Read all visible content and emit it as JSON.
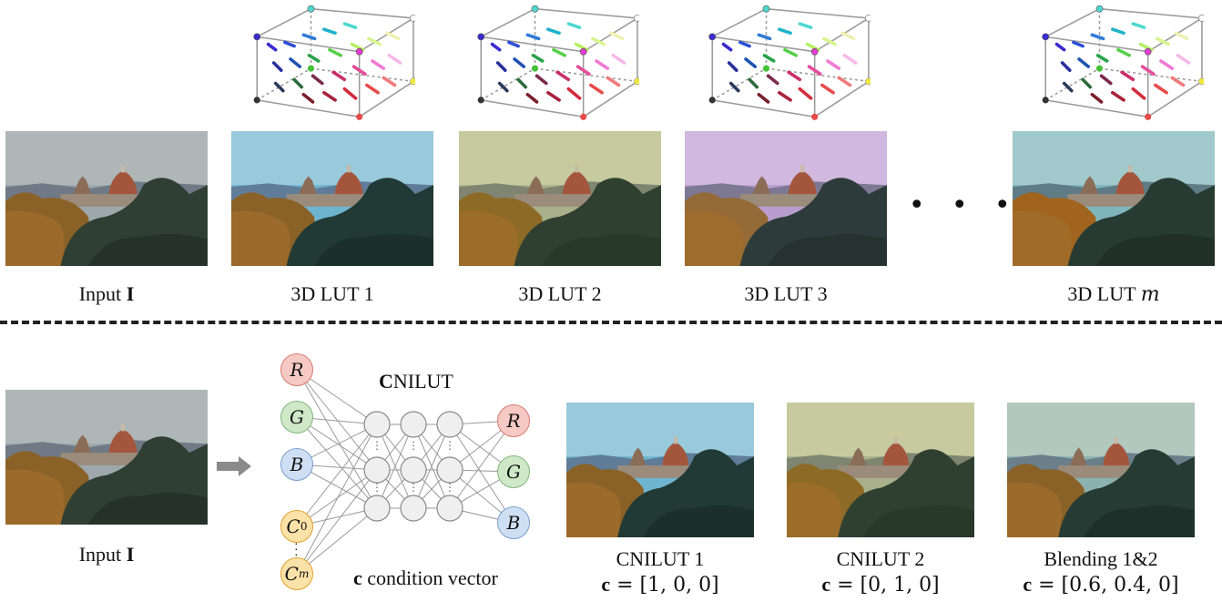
{
  "top_row": {
    "captions": {
      "input": "Input ",
      "input_bold": "I",
      "lut1": "3D LUT 1",
      "lut2": "3D LUT 2",
      "lut3": "3D LUT 3",
      "lutm": "3D LUT ",
      "lutm_italic": "m"
    },
    "ellipsis": ". . ."
  },
  "bottom_row": {
    "input_caption": "Input ",
    "input_caption_bold": "I",
    "network_title_bold": "C",
    "network_title_rest": "NILUT",
    "input_nodes": [
      "R",
      "G",
      "B"
    ],
    "condition_nodes": [
      "C0",
      "Cm"
    ],
    "output_nodes": [
      "R",
      "G",
      "B"
    ],
    "condition_label_bold": "c",
    "condition_label_rest": " condition vector",
    "results": [
      {
        "title": "CNILUT 1",
        "formula_bold": "c",
        "formula_rest": " = [1, 0, 0]"
      },
      {
        "title": "CNILUT 2",
        "formula_bold": "c",
        "formula_rest": " = [0, 1, 0]"
      },
      {
        "title": "Blending 1&2",
        "formula_bold": "c",
        "formula_rest": " = [0.6, 0.4, 0]"
      }
    ]
  },
  "colors": {
    "dash": "#222222",
    "arrow": "#8a8a8a",
    "node_red": "#f6c9c4",
    "node_green": "#cfe8c8",
    "node_blue": "#cfdff3",
    "node_orange": "#fbe2a8"
  }
}
